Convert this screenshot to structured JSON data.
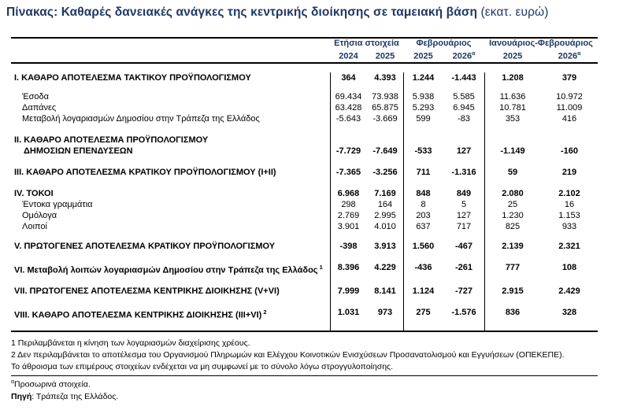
{
  "colors": {
    "accent_navy": "#1f3864",
    "text": "#000000",
    "line": "#000000"
  },
  "title": {
    "main": "Πίνακας: Καθαρές δανειακές ανάγκες της κεντρικής διοίκησης σε ταμειακή βάση",
    "unit": "(εκατ. ευρώ)"
  },
  "table": {
    "header": {
      "groups": [
        {
          "label": "Ετήσια στοιχεία"
        },
        {
          "label": "Φεβρουάριος"
        },
        {
          "label": "Ιανουάριος-Φεβρουάριος"
        }
      ],
      "years": [
        {
          "y": "2024",
          "sup": ""
        },
        {
          "y": "2025",
          "sup": ""
        },
        {
          "y": "2025",
          "sup": ""
        },
        {
          "y": "2026",
          "sup": "α"
        },
        {
          "y": "2025",
          "sup": ""
        },
        {
          "y": "2026",
          "sup": "α"
        }
      ]
    },
    "rows": [
      {
        "label": "I. ΚΑΘΑΡΟ ΑΠΟΤΕΛΕΣΜΑ  ΤΑΚΤΙΚΟΥ ΠΡΟΫΠΟΛΟΓΙΣΜΟΥ",
        "bold": true,
        "indent": 0,
        "sup": "",
        "space_before": 11,
        "values": [
          "364",
          "4.393",
          "1.244",
          "-1.443",
          "1.208",
          "379"
        ]
      },
      {
        "label": "Έσοδα",
        "bold": false,
        "indent": 1,
        "sup": "",
        "space_before": 10,
        "values": [
          "69.434",
          "73.938",
          "5.938",
          "5.585",
          "11.636",
          "10.972"
        ]
      },
      {
        "label": "Δαπάνες",
        "bold": false,
        "indent": 1,
        "sup": "",
        "space_before": 0,
        "values": [
          "63.428",
          "65.875",
          "5.293",
          "6.945",
          "10.781",
          "11.009"
        ]
      },
      {
        "label": "Μεταβολή λογαριασμών Δημοσίου στην Τράπεζα της Ελλάδος",
        "bold": false,
        "indent": 1,
        "sup": "",
        "space_before": 0,
        "values": [
          "-5.643",
          "-3.669",
          "599",
          "-83",
          "353",
          "416"
        ]
      },
      {
        "label": "II. ΚΑΘΑΡΟ ΑΠΟΤΕΛΕΣΜΑ ΠΡΟΫΠΟΛΟΓΙΣΜΟΥ",
        "bold": true,
        "indent": 0,
        "sup": "",
        "space_before": 13,
        "values": null
      },
      {
        "label": "ΔΗΜΟΣΙΩΝ ΕΠΕΝΔΥΣΕΩΝ",
        "bold": true,
        "indent": 1.2,
        "sup": "",
        "space_before": 0,
        "values": [
          "-7.729",
          "-7.649",
          "-533",
          "127",
          "-1.149",
          "-160"
        ]
      },
      {
        "label": "III. ΚΑΘΑΡΟ ΑΠΟΤΕΛΕΣΜΑ ΚΡΑΤΙΚΟΥ ΠΡΟΫΠΟΛΟΓΙΣΜΟΥ (Ι+ΙΙ)",
        "bold": true,
        "indent": 0,
        "sup": "",
        "space_before": 13,
        "values": [
          "-7.365",
          "-3.256",
          "711",
          "-1.316",
          "59",
          "219"
        ]
      },
      {
        "label": "IV. ΤΟΚΟΙ",
        "bold": true,
        "indent": 0,
        "sup": "",
        "space_before": 13,
        "values": [
          "6.968",
          "7.169",
          "848",
          "849",
          "2.080",
          "2.102"
        ]
      },
      {
        "label": "Έντοκα γραμμάτια",
        "bold": false,
        "indent": 1,
        "sup": "",
        "space_before": 0,
        "values": [
          "298",
          "164",
          "8",
          "5",
          "25",
          "16"
        ]
      },
      {
        "label": "Ομόλογα",
        "bold": false,
        "indent": 1,
        "sup": "",
        "space_before": 0,
        "values": [
          "2.769",
          "2.995",
          "203",
          "127",
          "1.230",
          "1.153"
        ]
      },
      {
        "label": "Λοιποί",
        "bold": false,
        "indent": 1,
        "sup": "",
        "space_before": 0,
        "values": [
          "3.901",
          "4.010",
          "637",
          "717",
          "825",
          "933"
        ]
      },
      {
        "label": "V. ΠΡΩΤΟΓΕΝΕΣ ΑΠΟΤΕΛΕΣΜΑ  ΚΡΑΤΙΚΟΥ ΠΡΟΫΠΟΛΟΓΙΣΜΟΥ",
        "bold": true,
        "indent": 0,
        "sup": "",
        "space_before": 11,
        "values": [
          "-398",
          "3.913",
          "1.560",
          "-467",
          "2.139",
          "2.321"
        ]
      },
      {
        "label": "VI. Μεταβολή λοιπών λογαριασμών Δημοσίου στην Τράπεζα της Ελλάδος",
        "bold": true,
        "indent": 0,
        "sup": "1",
        "space_before": 13,
        "values": [
          "8.396",
          "4.229",
          "-436",
          "-261",
          "777",
          "108"
        ]
      },
      {
        "label": "VII. ΠΡΩΤΟΓΕΝΕΣ ΑΠΟΤΕΛΕΣΜΑ ΚΕΝΤΡΙΚΗΣ ΔΙΟΙΚΗΣΗΣ (V+VI)",
        "bold": true,
        "indent": 0,
        "sup": "",
        "space_before": 13,
        "values": [
          "7.999",
          "8.141",
          "1.124",
          "-727",
          "2.915",
          "2.429"
        ]
      },
      {
        "label": "VIII. ΚΑΘΑΡΟ ΑΠΟΤΕΛΕΣΜΑ ΚΕΝΤΡΙΚΗΣ ΔΙΟΙΚΗΣΗΣ (III+VI)",
        "bold": true,
        "indent": 0,
        "sup": "2",
        "space_before": 13,
        "values": [
          "1.031",
          "973",
          "275",
          "-1.576",
          "836",
          "328"
        ]
      }
    ]
  },
  "footnotes": [
    "1 Περιλαμβάνεται η κίνηση των λογαριασμών διαχείρισης χρέους.",
    "2 Δεν περιλαμβάνεται το αποτέλεσμα του Οργανισμού Πληρωμών και Ελέγχου Κοινοτικών Ενισχύσεων Προσανατολισμού και Εγγυήσεων (ΟΠΕΚΕΠΕ).",
    "Το άθροισμα των επιμέρους στοιχείων ενδέχεται να μη συμφωνεί με το σύνολο λόγω στρογγυλοποίησης."
  ],
  "notes": {
    "provisional_sup": "α",
    "provisional": "Προσωρινά στοιχεία.",
    "source_label": "Πηγή",
    "source_text": ": Τράπεζα της Ελλάδος."
  }
}
